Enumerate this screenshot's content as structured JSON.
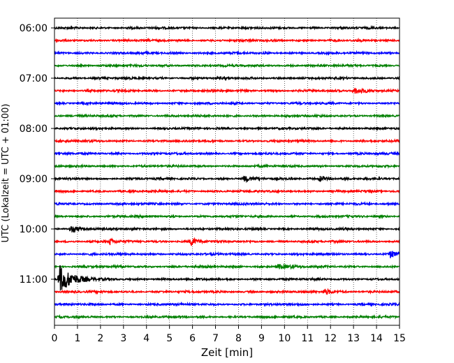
{
  "chart_data": {
    "type": "line",
    "title": "",
    "xlabel": "Zeit  [min]",
    "ylabel": "UTC (Lokalzeit = UTC + 01:00)",
    "xlim": [
      0,
      15
    ],
    "x_ticks": [
      "0",
      "1",
      "2",
      "3",
      "4",
      "5",
      "6",
      "7",
      "8",
      "9",
      "10",
      "11",
      "12",
      "13",
      "14",
      "15"
    ],
    "y_ticks": [
      "06:00",
      "07:00",
      "08:00",
      "09:00",
      "10:00",
      "11:00"
    ],
    "grid": "vertical dotted at each minute",
    "trace_colors": [
      "#000000",
      "#ff0000",
      "#0000ff",
      "#008000"
    ],
    "trace_start_times": [
      "06:00",
      "06:15",
      "06:30",
      "06:45",
      "07:00",
      "07:15",
      "07:30",
      "07:45",
      "08:00",
      "08:15",
      "08:30",
      "08:45",
      "09:00",
      "09:15",
      "09:30",
      "09:45",
      "10:00",
      "10:15",
      "10:30",
      "10:45",
      "11:00",
      "11:15",
      "11:30",
      "11:45"
    ],
    "events": [
      {
        "trace": 5,
        "minute": 13.0,
        "amp": 0.35,
        "width": 0.5
      },
      {
        "trace": 12,
        "minute": 8.2,
        "amp": 0.35,
        "width": 0.3
      },
      {
        "trace": 12,
        "minute": 11.5,
        "amp": 0.35,
        "width": 0.3
      },
      {
        "trace": 16,
        "minute": 0.7,
        "amp": 0.35,
        "width": 0.4
      },
      {
        "trace": 17,
        "minute": 2.4,
        "amp": 0.45,
        "width": 0.15
      },
      {
        "trace": 17,
        "minute": 5.9,
        "amp": 0.5,
        "width": 0.3
      },
      {
        "trace": 18,
        "minute": 14.6,
        "amp": 0.4,
        "width": 0.3
      },
      {
        "trace": 19,
        "minute": 9.7,
        "amp": 0.3,
        "width": 0.4
      },
      {
        "trace": 20,
        "minute": 0.2,
        "amp": 1.8,
        "width": 0.5
      },
      {
        "trace": 21,
        "minute": 11.7,
        "amp": 0.4,
        "width": 0.3
      }
    ]
  }
}
